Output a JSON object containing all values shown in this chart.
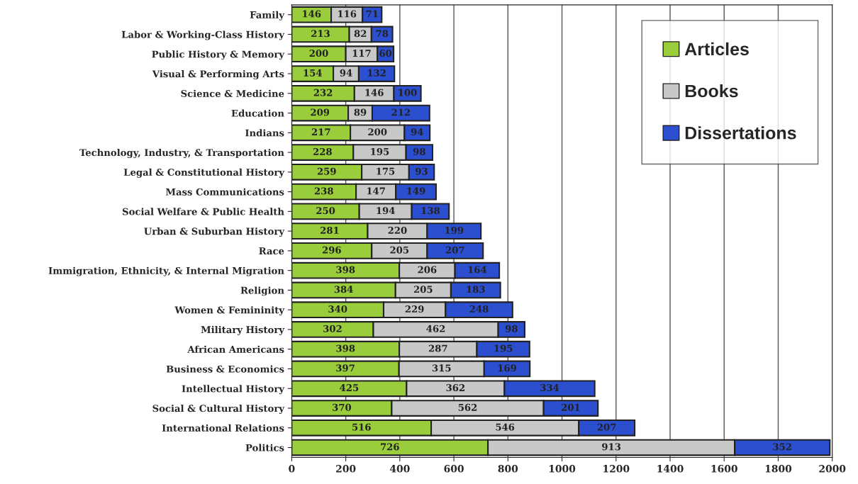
{
  "chart_data": {
    "type": "bar",
    "orientation": "horizontal",
    "stacked": true,
    "data_labels": true,
    "grid": "x",
    "legend": "top right",
    "categories": [
      "Family",
      "Labor & Working-Class History",
      "Public History & Memory",
      "Visual & Performing Arts",
      "Science & Medicine",
      "Education",
      "Indians",
      "Technology, Industry, & Transportation",
      "Legal & Constitutional History",
      "Mass Communications",
      "Social Welfare & Public Health",
      "Urban & Suburban History",
      "Race",
      "Immigration, Ethnicity, & Internal Migration",
      "Religion",
      "Women & Femininity",
      "Military History",
      "African Americans",
      "Business & Economics",
      "Intellectual History",
      "Social & Cultural History",
      "International Relations",
      "Politics"
    ],
    "series": [
      {
        "name": "Articles",
        "color": "#9acd3c",
        "values": [
          146,
          213,
          200,
          154,
          232,
          209,
          217,
          228,
          259,
          238,
          250,
          281,
          296,
          398,
          384,
          340,
          302,
          398,
          397,
          425,
          370,
          516,
          726
        ]
      },
      {
        "name": "Books",
        "color": "#c8c8c8",
        "values": [
          116,
          82,
          117,
          94,
          146,
          89,
          200,
          195,
          175,
          147,
          194,
          220,
          205,
          206,
          205,
          229,
          462,
          287,
          315,
          362,
          562,
          546,
          913
        ]
      },
      {
        "name": "Dissertations",
        "color": "#2b4fcf",
        "values": [
          71,
          78,
          60,
          132,
          100,
          212,
          94,
          98,
          93,
          149,
          138,
          199,
          207,
          164,
          183,
          248,
          98,
          195,
          169,
          334,
          201,
          207,
          352
        ]
      }
    ],
    "xlim": [
      0,
      2000
    ],
    "xticks": [
      0,
      200,
      400,
      600,
      800,
      1000,
      1200,
      1400,
      1600,
      1800,
      2000
    ]
  }
}
